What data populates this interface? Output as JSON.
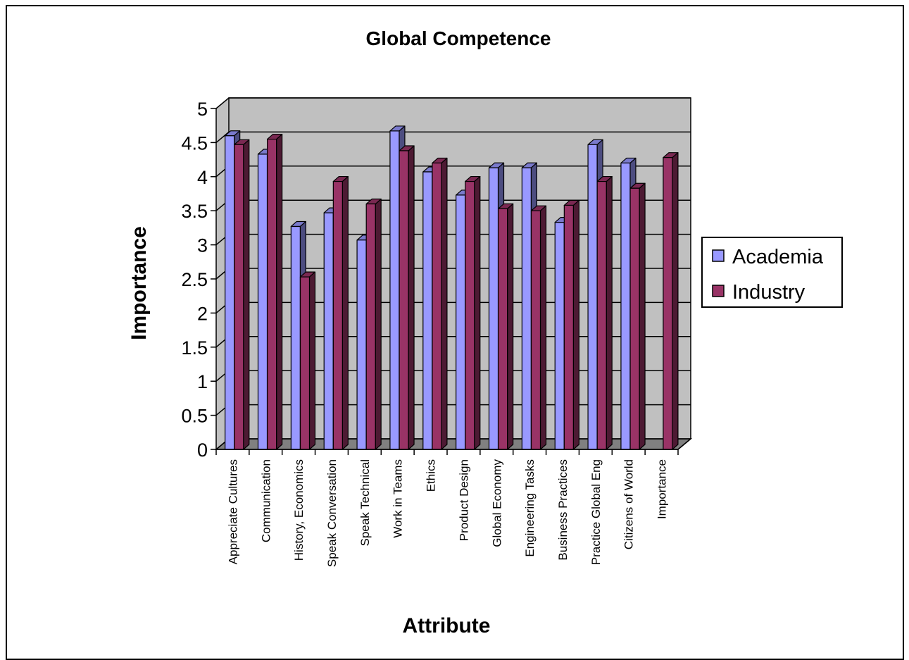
{
  "chart_data": {
    "type": "bar",
    "title": "Global Competence",
    "xlabel": "Attribute",
    "ylabel": "Importance",
    "ylim": [
      0,
      5
    ],
    "yticks": [
      "0",
      "0.5",
      "1",
      "1.5",
      "2",
      "2.5",
      "3",
      "3.5",
      "4",
      "4.5",
      "5"
    ],
    "grid": true,
    "legend_position": "right",
    "categories": [
      "Appreciate Cultures",
      "Communication",
      "History, Economics",
      "Speak Conversation",
      "Speak Technical",
      "Work in Teams",
      "Ethics",
      "Product Design",
      "Global Economy",
      "Engineering Tasks",
      "Business Practices",
      "Practice Global Eng",
      "Citizens of World",
      "Importance"
    ],
    "series": [
      {
        "name": "Academia",
        "color": "#9999ff",
        "values": [
          4.6,
          4.33,
          3.27,
          3.47,
          3.07,
          4.67,
          4.07,
          3.73,
          4.13,
          4.13,
          3.33,
          4.47,
          4.2,
          null
        ]
      },
      {
        "name": "Industry",
        "color": "#993366",
        "values": [
          4.47,
          4.55,
          2.53,
          3.93,
          3.6,
          4.38,
          4.2,
          3.93,
          3.53,
          3.5,
          3.58,
          3.93,
          3.83,
          4.28
        ]
      }
    ]
  }
}
